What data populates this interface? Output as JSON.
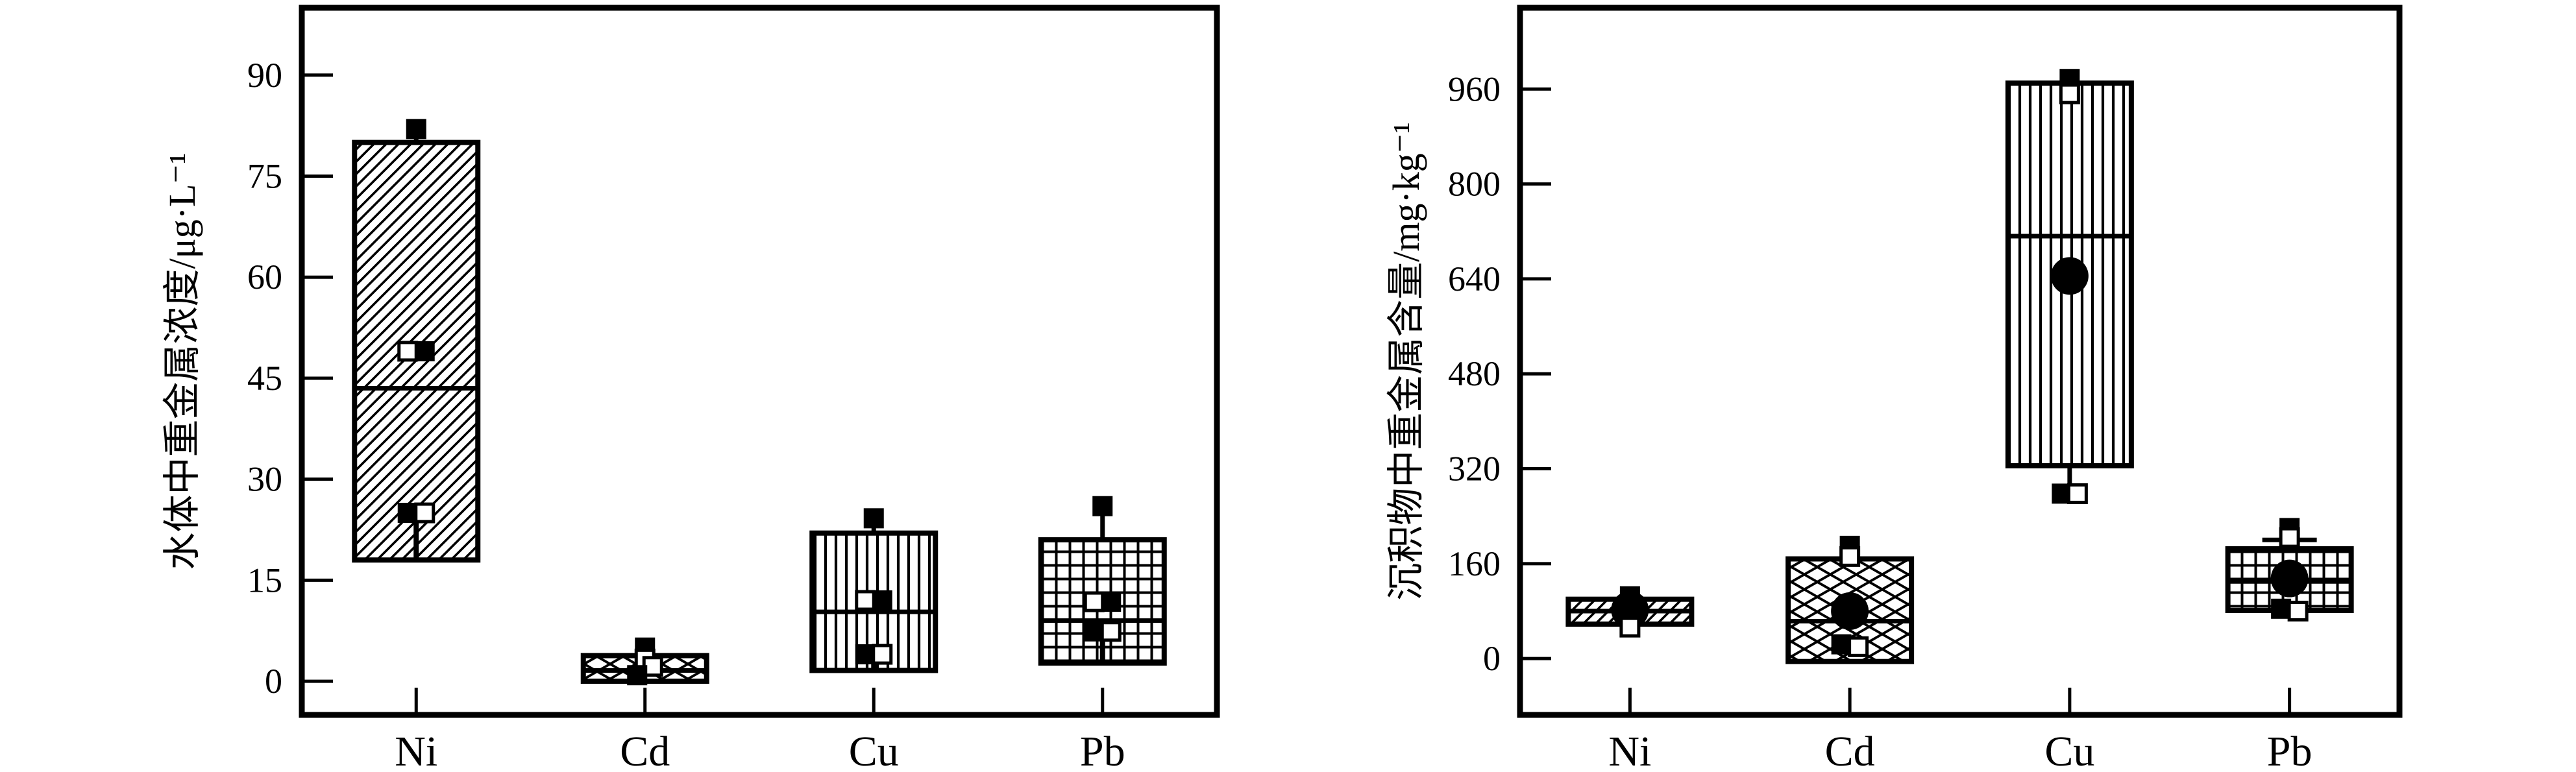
{
  "figure": {
    "background": "#ffffff",
    "ink_color": "#000000"
  },
  "chart_data": [
    {
      "type": "box",
      "id": "water",
      "ylabel": "水体中重金属浓度/μg·L⁻¹",
      "categories": [
        "Ni",
        "Cd",
        "Cu",
        "Pb"
      ],
      "y_ticks": [
        0,
        15,
        30,
        45,
        60,
        75,
        90
      ],
      "ylim": [
        -5,
        100
      ],
      "grid": false,
      "boxes": [
        {
          "category": "Ni",
          "pattern": "diagonal",
          "q1": 18,
          "median": 43.5,
          "q3": 80,
          "whisker_high": 82,
          "stem": [
            25,
            18
          ],
          "markers": [
            {
              "type": "filled-square",
              "value": 82,
              "dx": 0
            },
            {
              "type": "open-square",
              "value": 49,
              "dx": -13
            },
            {
              "type": "filled-square",
              "value": 49,
              "dx": 13
            },
            {
              "type": "filled-square",
              "value": 25,
              "dx": -13
            },
            {
              "type": "open-square",
              "value": 25,
              "dx": 13
            }
          ]
        },
        {
          "category": "Cd",
          "pattern": "crosshatch",
          "q1": 0,
          "median": 1.6,
          "q3": 3.8,
          "whisker_high": 4.4,
          "markers": [
            {
              "type": "filled-square",
              "value": 5,
              "dx": 0
            },
            {
              "type": "open-square",
              "value": 3.3,
              "dx": 0
            },
            {
              "type": "open-square",
              "value": 2.2,
              "dx": 12
            },
            {
              "type": "filled-square",
              "value": 0.9,
              "dx": -12
            }
          ]
        },
        {
          "category": "Cu",
          "pattern": "vertical",
          "q1": 1.6,
          "median": 10.3,
          "q3": 22,
          "whisker_high": 23.6,
          "stem": [
            4,
            1.6
          ],
          "markers": [
            {
              "type": "filled-square",
              "value": 24.2,
              "dx": 0
            },
            {
              "type": "open-square",
              "value": 12,
              "dx": -13
            },
            {
              "type": "filled-square",
              "value": 12,
              "dx": 13
            },
            {
              "type": "filled-square",
              "value": 4,
              "dx": -13
            },
            {
              "type": "open-square",
              "value": 4,
              "dx": 13
            }
          ]
        },
        {
          "category": "Pb",
          "pattern": "grid",
          "q1": 2.7,
          "median": 9,
          "q3": 21,
          "whisker_high": 25.5,
          "stem": [
            7.4,
            2.7
          ],
          "markers": [
            {
              "type": "filled-square",
              "value": 26,
              "dx": 0
            },
            {
              "type": "open-square",
              "value": 11.8,
              "dx": -13
            },
            {
              "type": "filled-square",
              "value": 11.8,
              "dx": 13
            },
            {
              "type": "filled-square",
              "value": 7.4,
              "dx": -13
            },
            {
              "type": "open-square",
              "value": 7.4,
              "dx": 13
            }
          ]
        }
      ]
    },
    {
      "type": "box",
      "id": "sediment",
      "ylabel": "沉积物中重金属含量/mg·kg⁻¹",
      "categories": [
        "Ni",
        "Cd",
        "Cu",
        "Pb"
      ],
      "y_ticks": [
        0,
        160,
        320,
        480,
        640,
        800,
        960
      ],
      "ylim": [
        -95,
        1097
      ],
      "grid": false,
      "boxes": [
        {
          "category": "Ni",
          "pattern": "diagonal",
          "q1": 58,
          "median": 80,
          "q3": 100,
          "markers": [
            {
              "type": "filled-square",
              "value": 105,
              "dx": 0
            },
            {
              "type": "filled-circle",
              "value": 82,
              "dx": 0
            },
            {
              "type": "open-square",
              "value": 53,
              "dx": 0
            }
          ]
        },
        {
          "category": "Cd",
          "pattern": "crosshatch",
          "q1": -5,
          "median": 63,
          "q3": 168,
          "markers": [
            {
              "type": "filled-square",
              "value": 190,
              "dx": 0
            },
            {
              "type": "open-square",
              "value": 172,
              "dx": 0
            },
            {
              "type": "filled-circle",
              "value": 80,
              "dx": 0
            },
            {
              "type": "filled-square",
              "value": 24,
              "dx": -13
            },
            {
              "type": "open-square",
              "value": 20,
              "dx": 13
            }
          ]
        },
        {
          "category": "Cu",
          "pattern": "vertical",
          "q1": 325,
          "median": 712,
          "q3": 970,
          "whisker_low": 288,
          "markers": [
            {
              "type": "filled-square",
              "value": 977,
              "dx": 0
            },
            {
              "type": "open-square",
              "value": 952,
              "dx": 0
            },
            {
              "type": "filled-circle",
              "value": 645,
              "dx": 0
            },
            {
              "type": "filled-square",
              "value": 278,
              "dx": -12
            },
            {
              "type": "open-square",
              "value": 278,
              "dx": 12
            }
          ]
        },
        {
          "category": "Pb",
          "pattern": "grid",
          "q1": 81,
          "median": 130,
          "q3": 185,
          "whisker_high": 200,
          "whisker_high_cap": true,
          "markers": [
            {
              "type": "filled-square",
              "value": 220,
              "dx": 0
            },
            {
              "type": "open-square",
              "value": 204,
              "dx": 0
            },
            {
              "type": "filled-circle",
              "value": 135,
              "dx": 0
            },
            {
              "type": "filled-square",
              "value": 84,
              "dx": -13
            },
            {
              "type": "open-square",
              "value": 80,
              "dx": 13
            }
          ]
        }
      ]
    }
  ]
}
